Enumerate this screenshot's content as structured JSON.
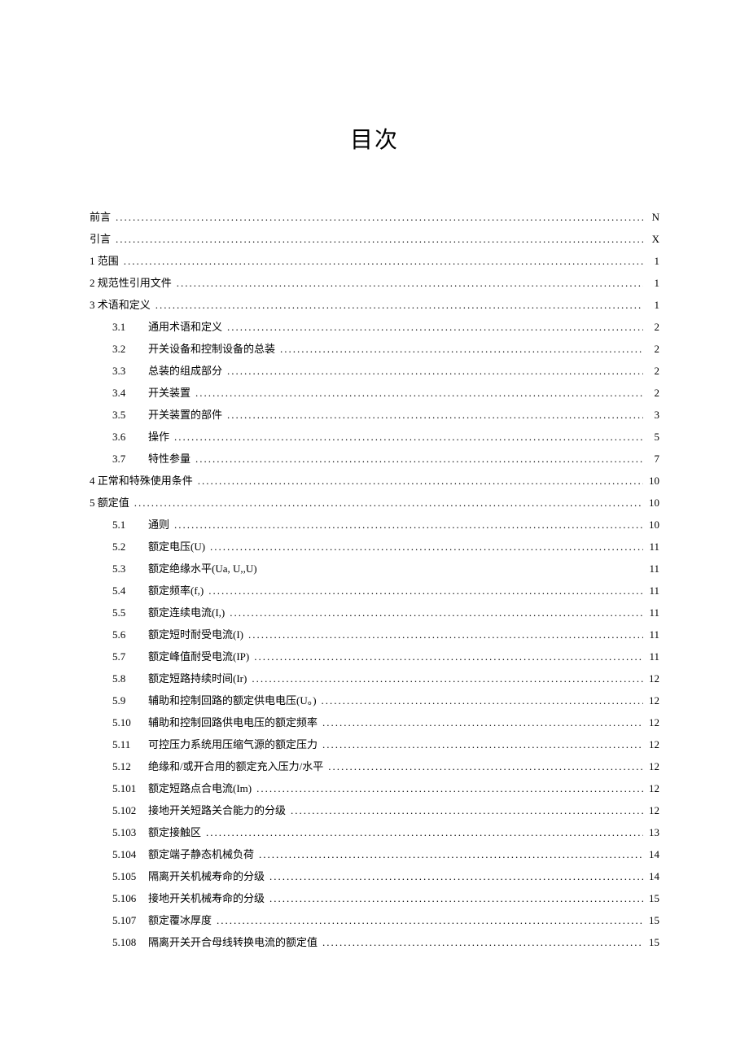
{
  "title": "目次",
  "entries": [
    {
      "level": 1,
      "num": "",
      "label": "前言",
      "page": "N",
      "dots": true
    },
    {
      "level": 1,
      "num": "",
      "label": "引言",
      "page": "X",
      "dots": true
    },
    {
      "level": 1,
      "num": "",
      "label": "1 范围",
      "page": "1",
      "dots": true
    },
    {
      "level": 1,
      "num": "",
      "label": "2 规范性引用文件",
      "page": "1",
      "dots": true
    },
    {
      "level": 1,
      "num": "",
      "label": "3 术语和定义",
      "page": "1",
      "dots": true
    },
    {
      "level": 2,
      "num": "3.1",
      "label": "通用术语和定义",
      "page": "2",
      "dots": true
    },
    {
      "level": 2,
      "num": "3.2",
      "label": "开关设备和控制设备的总装",
      "page": "2",
      "dots": true
    },
    {
      "level": 2,
      "num": "3.3",
      "label": "总装的组成部分",
      "page": "2",
      "dots": true
    },
    {
      "level": 2,
      "num": "3.4",
      "label": "开关装置",
      "page": "2",
      "dots": true
    },
    {
      "level": 2,
      "num": "3.5",
      "label": "开关装置的部件",
      "page": "3",
      "dots": true
    },
    {
      "level": 2,
      "num": "3.6",
      "label": "操作",
      "page": "5",
      "dots": true
    },
    {
      "level": 2,
      "num": "3.7",
      "label": "特性参量",
      "page": "7",
      "dots": true
    },
    {
      "level": 1,
      "num": "",
      "label": "4 正常和特殊使用条件",
      "page": "10",
      "dots": true
    },
    {
      "level": 1,
      "num": "",
      "label": "5 额定值",
      "page": "10",
      "dots": true
    },
    {
      "level": 2,
      "num": "5.1",
      "label": "通则",
      "page": "10",
      "dots": true
    },
    {
      "level": 2,
      "num": "5.2",
      "label": "额定电压(U)",
      "page": "11",
      "dots": true
    },
    {
      "level": 2,
      "num": "5.3",
      "label": "额定绝缘水平(Ua,  U,,U)",
      "page": "11",
      "dots": false
    },
    {
      "level": 2,
      "num": "5.4",
      "label": "额定频率(f,)",
      "page": "11",
      "dots": true
    },
    {
      "level": 2,
      "num": "5.5",
      "label": "额定连续电流(I,)",
      "page": "11",
      "dots": true
    },
    {
      "level": 2,
      "num": "5.6",
      "label": "额定短时耐受电流(I)",
      "page": "11",
      "dots": true
    },
    {
      "level": 2,
      "num": "5.7",
      "label": "额定峰值耐受电流(IP)",
      "page": "11",
      "dots": true
    },
    {
      "level": 2,
      "num": "5.8",
      "label": "额定短路持续时间(Ir)",
      "page": "12",
      "dots": true
    },
    {
      "level": 2,
      "num": "5.9",
      "label": "辅助和控制回路的额定供电电压(U。)",
      "page": "12",
      "dots": true
    },
    {
      "level": 2,
      "num": "5.10",
      "label": "辅助和控制回路供电电压的额定频率",
      "page": "12",
      "dots": true
    },
    {
      "level": 2,
      "num": "5.11",
      "label": "可控压力系统用压缩气源的额定压力",
      "page": "12",
      "dots": true
    },
    {
      "level": 2,
      "num": "5.12",
      "label": "绝缘和/或开合用的额定充入压力/水平",
      "page": "12",
      "dots": true
    },
    {
      "level": 2,
      "num": "5.101",
      "label": "额定短路点合电流(Im)",
      "page": "12",
      "dots": true
    },
    {
      "level": 2,
      "num": "5.102",
      "label": "接地开关短路关合能力的分级",
      "page": "12",
      "dots": true
    },
    {
      "level": 2,
      "num": "5.103",
      "label": "额定接触区",
      "page": "13",
      "dots": true
    },
    {
      "level": 2,
      "num": "5.104",
      "label": "额定端子静态机械负荷",
      "page": "14",
      "dots": true
    },
    {
      "level": 2,
      "num": "5.105",
      "label": "隔离开关机械寿命的分级",
      "page": "14",
      "dots": true
    },
    {
      "level": 2,
      "num": "5.106",
      "label": "接地开关机械寿命的分级",
      "page": "15",
      "dots": true
    },
    {
      "level": 2,
      "num": "5.107",
      "label": "额定覆冰厚度",
      "page": "15",
      "dots": true
    },
    {
      "level": 2,
      "num": "5.108",
      "label": "隔离开关开合母线转换电流的额定值",
      "page": "15",
      "dots": true
    }
  ]
}
